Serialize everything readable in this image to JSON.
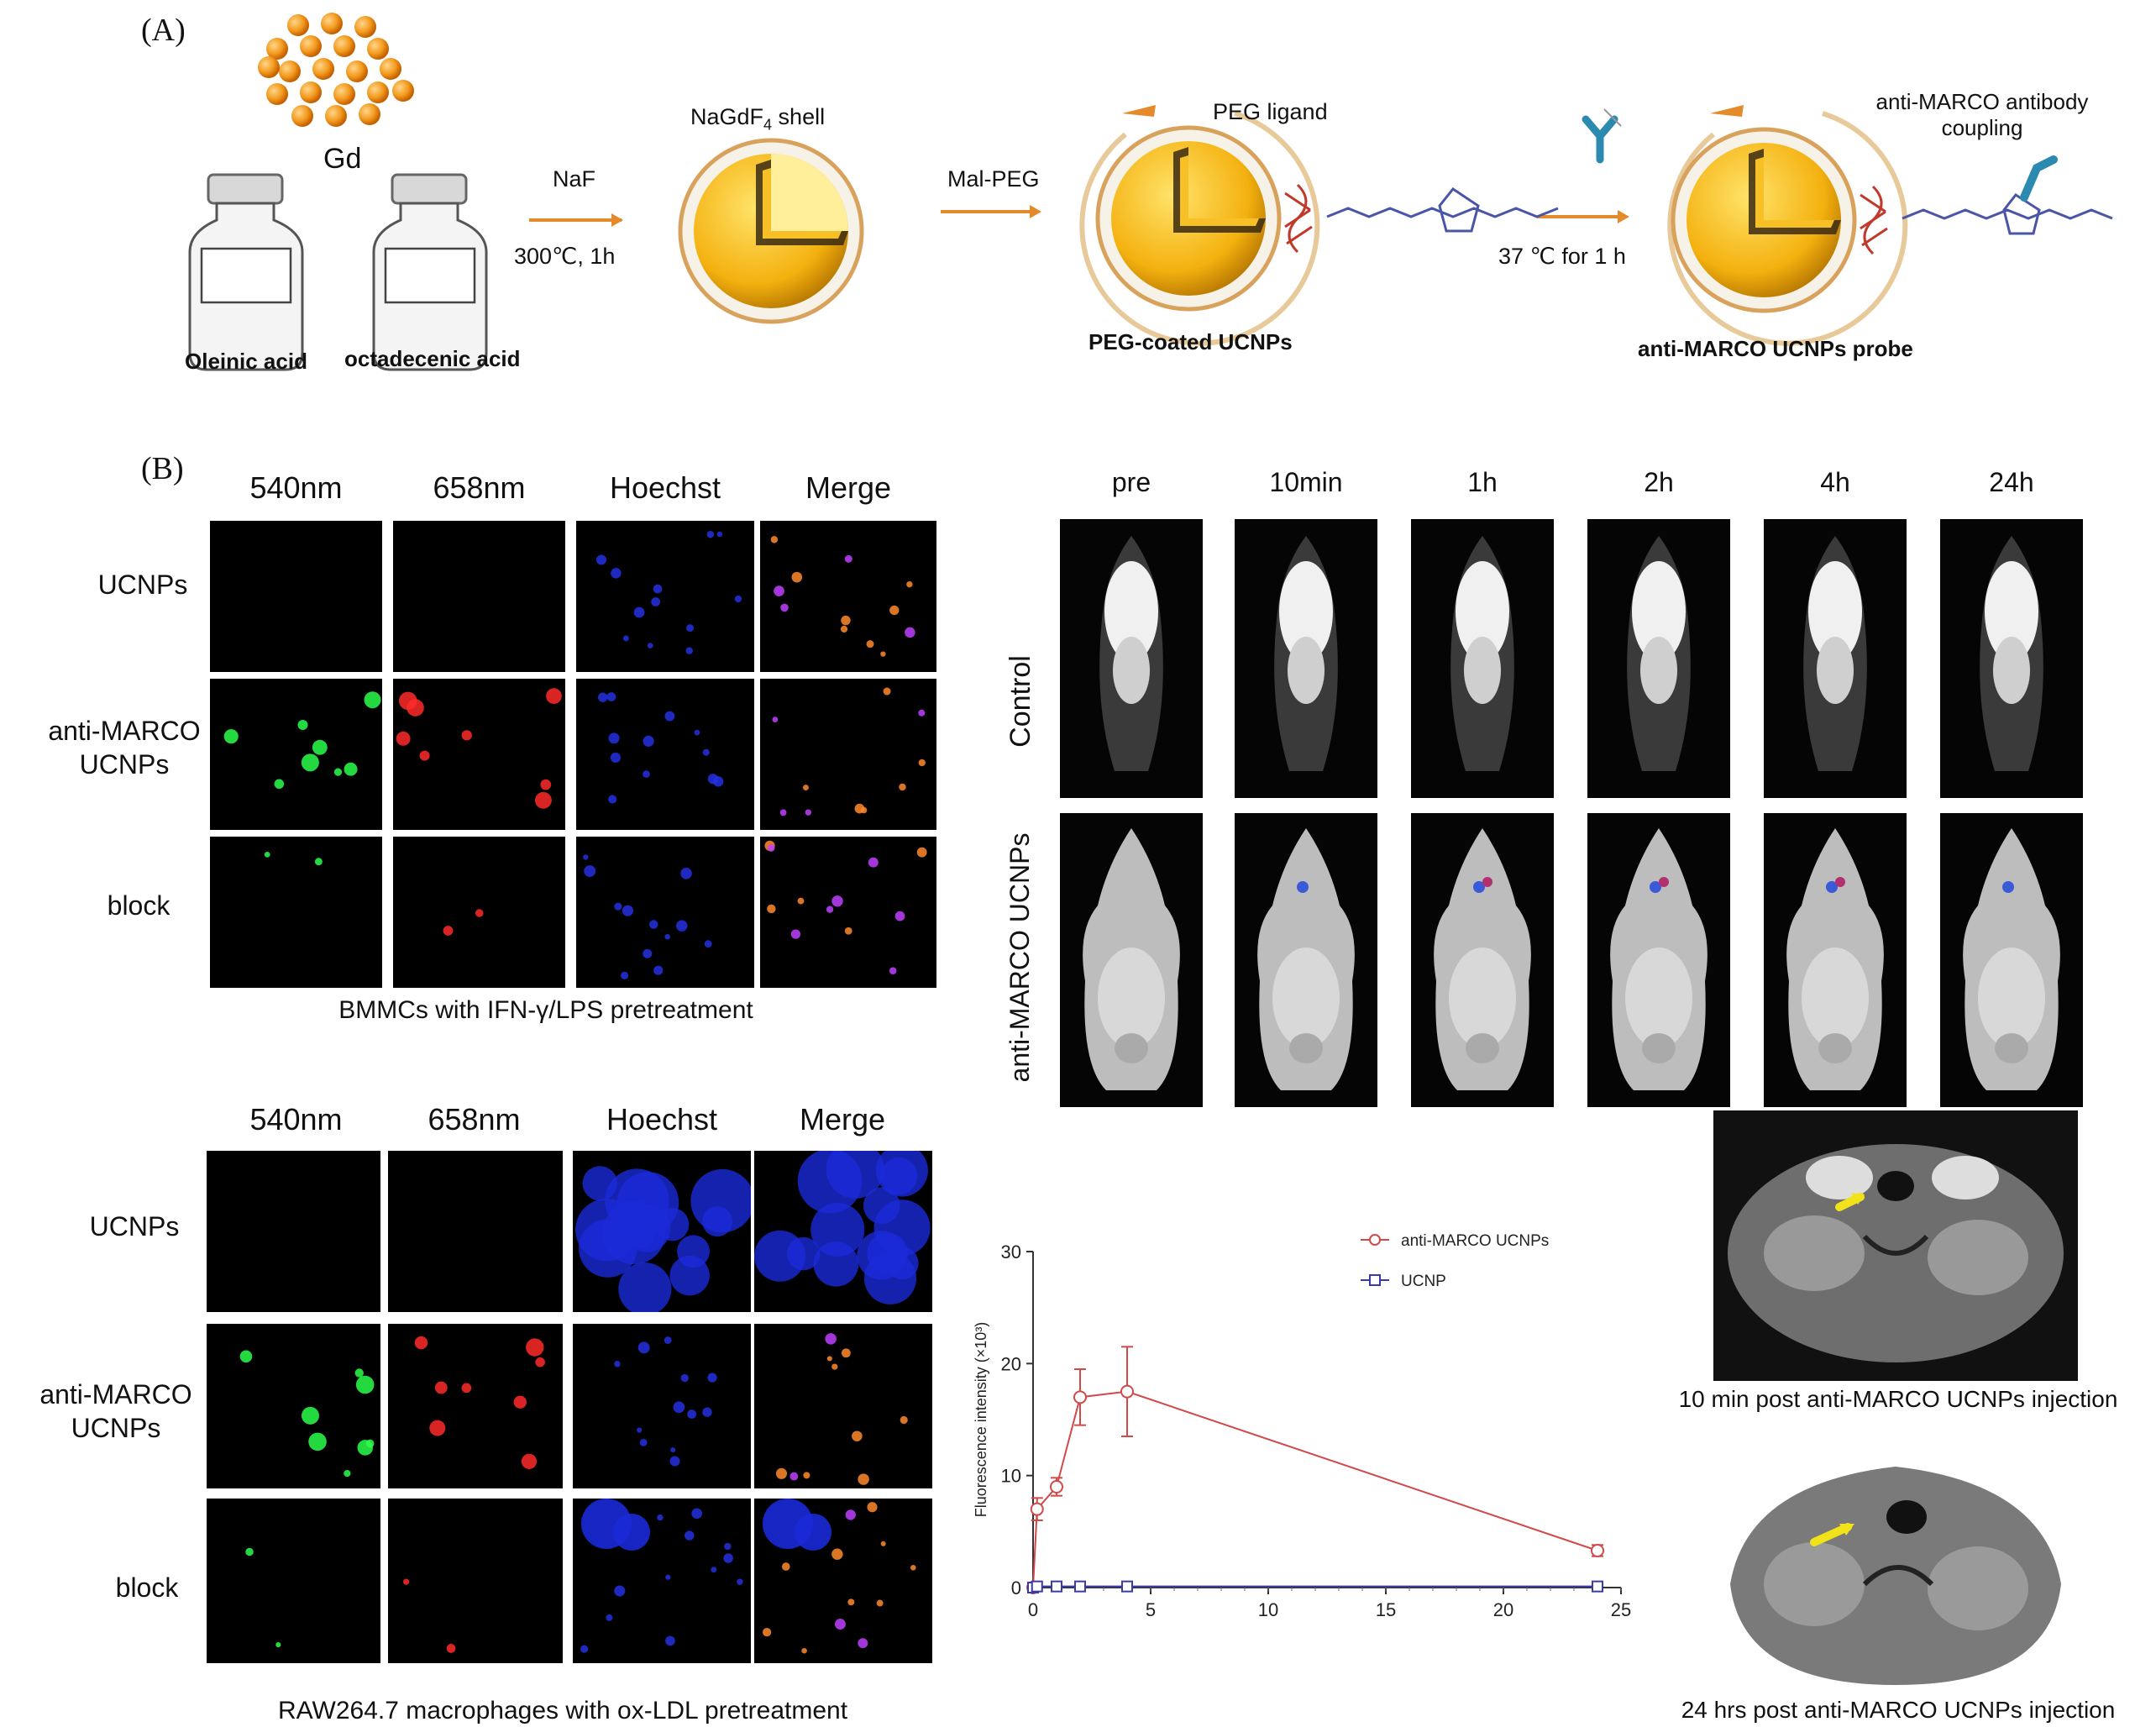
{
  "panel_a": {
    "letter": "(A)",
    "gd": "Gd",
    "bottle1": "Oleinic acid",
    "bottle2": "octadecenic acid",
    "step1_reagent": "NaF",
    "step1_cond": "300℃, 1h",
    "shell": "NaGdF",
    "shell_sub": "4",
    "shell_suffix": " shell",
    "step2_reagent": "Mal-PEG",
    "peg_ligand": "PEG ligand",
    "peg_coated": "PEG-coated UCNPs",
    "step3_cond": "37 ℃ for 1 h",
    "antibody_line1": "anti-MARCO antibody",
    "antibody_line2": "coupling",
    "probe": "anti-MARCO UCNPs probe"
  },
  "panel_b": {
    "letter": "(B)",
    "grid1": {
      "columns": [
        "540nm",
        "658nm",
        "Hoechst",
        "Merge"
      ],
      "rows": [
        "UCNPs",
        "anti-MARCO\nUCNPs",
        "block"
      ],
      "caption": "BMMCs with IFN-γ/LPS pretreatment"
    },
    "grid2": {
      "columns": [
        "540nm",
        "658nm",
        "Hoechst",
        "Merge"
      ],
      "rows": [
        "UCNPs",
        "anti-MARCO\nUCNPs",
        "block"
      ],
      "caption": "RAW264.7 macrophages with ox-LDL pretreatment"
    },
    "invivo": {
      "timepoints": [
        "pre",
        "10min",
        "1h",
        "2h",
        "4h",
        "24h"
      ],
      "rows": [
        "Control",
        "anti-MARCO UCNPs"
      ]
    },
    "mri": {
      "caption1": "10 min post anti-MARCO UCNPs injection",
      "caption2": "24 hrs post anti-MARCO UCNPs injection"
    }
  },
  "chart_data": {
    "type": "line",
    "ylabel": "Fluorescence intensity (×10³)",
    "xlim": [
      0,
      25
    ],
    "ylim": [
      0,
      30
    ],
    "xticks": [
      0,
      5,
      10,
      15,
      20,
      25
    ],
    "yticks": [
      0,
      10,
      20,
      30
    ],
    "legend_position": "top-right",
    "series": [
      {
        "name": "anti-MARCO UCNPs",
        "color": "#d04a4a",
        "marker": "circle",
        "x": [
          0,
          0.17,
          1,
          2,
          4,
          24
        ],
        "y": [
          0,
          7,
          9,
          17,
          17.5,
          3.3
        ],
        "err": [
          0,
          1,
          0.8,
          2.5,
          4,
          0.5
        ]
      },
      {
        "name": "UCNP",
        "color": "#3a3aa8",
        "marker": "square",
        "x": [
          0,
          0.17,
          1,
          2,
          4,
          24
        ],
        "y": [
          0,
          0.1,
          0.1,
          0.1,
          0.1,
          0.1
        ],
        "err": [
          0,
          0,
          0,
          0,
          0,
          0
        ]
      }
    ]
  }
}
